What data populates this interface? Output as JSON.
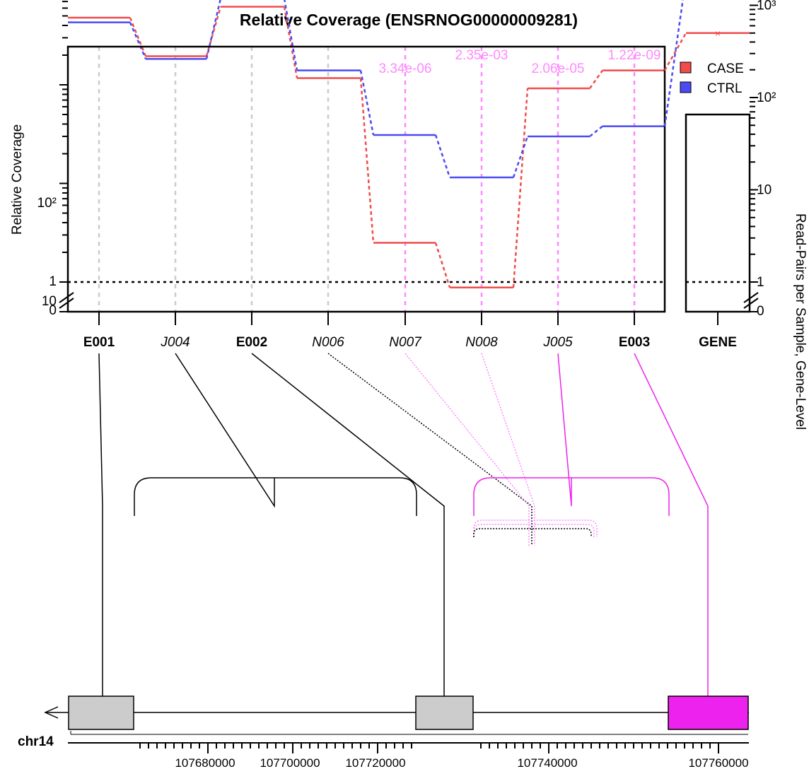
{
  "chart_data": {
    "type": "line",
    "title": "Relative Coverage (ENSRNOG00000009281)",
    "ylabel": "Relative Coverage",
    "ylabel_right": "Read-Pairs per Sample, Gene-Level",
    "yscale": "log",
    "ylim": [
      0.8,
      1000
    ],
    "yticks": [
      "0",
      "1",
      "10",
      "10²"
    ],
    "yticks_right": [
      "0",
      "1",
      "10",
      "10²",
      "10³"
    ],
    "categories": [
      {
        "label": "E001",
        "style": "bold",
        "color": "#000000"
      },
      {
        "label": "J004",
        "style": "italic",
        "color": "#000000"
      },
      {
        "label": "E002",
        "style": "bold",
        "color": "#000000"
      },
      {
        "label": "N006",
        "style": "italic",
        "color": "#000000"
      },
      {
        "label": "N007",
        "style": "italic",
        "color": "#FF88FF"
      },
      {
        "label": "N008",
        "style": "italic",
        "color": "#FF88FF"
      },
      {
        "label": "J005",
        "style": "italic",
        "color": "#FF88FF"
      },
      {
        "label": "E003",
        "style": "bold",
        "color": "#000000"
      }
    ],
    "series": [
      {
        "name": "CASE",
        "color": "#F24B4B",
        "values": [
          480,
          195,
          620,
          117,
          2.5,
          0.88,
          92,
          140
        ]
      },
      {
        "name": "CTRL",
        "color": "#4B4BF2",
        "values": [
          430,
          183,
          750,
          140,
          31,
          11.5,
          30,
          38
        ]
      }
    ],
    "pvalues": [
      {
        "feature": "N007",
        "text": "3.34e-06"
      },
      {
        "feature": "N008",
        "text": "2.35e-03"
      },
      {
        "feature": "J005",
        "text": "2.06e-05"
      },
      {
        "feature": "E003",
        "text": "1.22e-09"
      }
    ],
    "gene_panel": {
      "label": "GENE",
      "CASE": 500,
      "CTRL": 1950
    },
    "legend": [
      {
        "name": "CASE",
        "color": "#F24B4B"
      },
      {
        "name": "CTRL",
        "color": "#4B4BF2"
      }
    ],
    "legend_position": "top-right",
    "genome": {
      "chromosome": "chr14",
      "tick_labels": [
        "107680000",
        "107700000",
        "107720000",
        "107740000",
        "107760000"
      ]
    },
    "colors": {
      "significant": "#FF88FF",
      "gene_exon_highlight": "#EE22EE",
      "exon_fill": "#CCCCCC"
    }
  }
}
